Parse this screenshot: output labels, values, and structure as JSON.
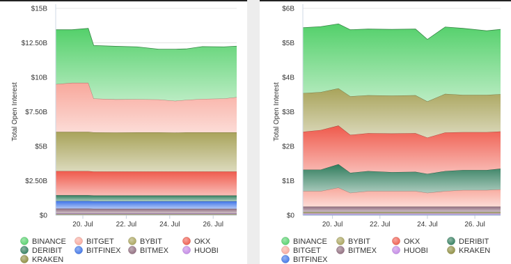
{
  "chart_data": [
    {
      "type": "area",
      "stacked": true,
      "ylabel": "Total Open Interest",
      "y_unit": "USD",
      "ylim": [
        0,
        15000000000
      ],
      "y_ticks": [
        0,
        2500000000,
        5000000000,
        7500000000,
        10000000000,
        12500000000,
        15000000000
      ],
      "y_tick_labels": [
        "$0",
        "$2.50B",
        "$5B",
        "$7.50B",
        "$10B",
        "$12.50B",
        "$15B"
      ],
      "x_range": [
        "2023-07-18T18:00",
        "2023-07-27T02:00"
      ],
      "x_ticks": [
        "2023-07-20",
        "2023-07-22",
        "2023-07-24",
        "2023-07-26"
      ],
      "x_tick_labels": [
        "20. Jul",
        "22. Jul",
        "24. Jul",
        "26. Jul"
      ],
      "legend_position": "bottom",
      "x": [
        "2023-07-18T18:00",
        "2023-07-19T12:00",
        "2023-07-20T06:00",
        "2023-07-20T12:00",
        "2023-07-21T12:00",
        "2023-07-22T12:00",
        "2023-07-23T12:00",
        "2023-07-24T06:00",
        "2023-07-24T18:00",
        "2023-07-25T12:00",
        "2023-07-26T12:00",
        "2023-07-27T02:00"
      ],
      "series": [
        {
          "name": "KRAKEN",
          "color": "#8d8c3e",
          "values": [
            0.08,
            0.08,
            0.08,
            0.08,
            0.08,
            0.08,
            0.08,
            0.08,
            0.08,
            0.08,
            0.08,
            0.08
          ]
        },
        {
          "name": "HUOBI",
          "color": "#c387e6",
          "values": [
            0.05,
            0.05,
            0.05,
            0.05,
            0.05,
            0.05,
            0.05,
            0.05,
            0.05,
            0.05,
            0.05,
            0.05
          ]
        },
        {
          "name": "BITMEX",
          "color": "#8f6b7d",
          "values": [
            0.35,
            0.35,
            0.35,
            0.34,
            0.34,
            0.34,
            0.34,
            0.34,
            0.34,
            0.34,
            0.34,
            0.34
          ]
        },
        {
          "name": "BITFINEX",
          "color": "#3e74e8",
          "values": [
            0.55,
            0.55,
            0.55,
            0.54,
            0.54,
            0.54,
            0.54,
            0.54,
            0.54,
            0.54,
            0.54,
            0.54
          ]
        },
        {
          "name": "DERIBIT",
          "color": "#2f7c5c",
          "values": [
            0.42,
            0.42,
            0.42,
            0.42,
            0.42,
            0.42,
            0.42,
            0.42,
            0.42,
            0.42,
            0.42,
            0.42
          ]
        },
        {
          "name": "OKX",
          "color": "#ef5a4c",
          "values": [
            1.75,
            1.75,
            1.75,
            1.74,
            1.74,
            1.74,
            1.74,
            1.74,
            1.74,
            1.74,
            1.74,
            1.74
          ]
        },
        {
          "name": "BYBIT",
          "color": "#a8a35a",
          "values": [
            2.85,
            2.85,
            2.85,
            2.84,
            2.83,
            2.84,
            2.84,
            2.82,
            2.84,
            2.84,
            2.84,
            2.84
          ]
        },
        {
          "name": "BITGET",
          "color": "#f8a89c",
          "values": [
            3.45,
            3.55,
            3.55,
            2.45,
            2.4,
            2.4,
            2.38,
            2.3,
            2.35,
            2.42,
            2.45,
            2.55
          ]
        },
        {
          "name": "BINANCE",
          "color": "#53d06a",
          "values": [
            3.95,
            3.85,
            3.95,
            3.85,
            3.85,
            3.8,
            3.65,
            3.75,
            3.7,
            3.8,
            3.75,
            3.7
          ]
        }
      ]
    },
    {
      "type": "area",
      "stacked": true,
      "ylabel": "Total Open Interest",
      "y_unit": "USD",
      "ylim": [
        0,
        6000000000
      ],
      "y_ticks": [
        0,
        1000000000,
        2000000000,
        3000000000,
        4000000000,
        5000000000,
        6000000000
      ],
      "y_tick_labels": [
        "$0",
        "$1B",
        "$2B",
        "$3B",
        "$4B",
        "$5B",
        "$6B"
      ],
      "x_range": [
        "2023-07-18T18:00",
        "2023-07-27T02:00"
      ],
      "x_ticks": [
        "2023-07-20",
        "2023-07-22",
        "2023-07-24",
        "2023-07-26"
      ],
      "x_tick_labels": [
        "20. Jul",
        "22. Jul",
        "24. Jul",
        "26. Jul"
      ],
      "legend_position": "bottom",
      "x": [
        "2023-07-18T18:00",
        "2023-07-19T12:00",
        "2023-07-20T06:00",
        "2023-07-20T18:00",
        "2023-07-21T12:00",
        "2023-07-22T12:00",
        "2023-07-23T12:00",
        "2023-07-24T00:00",
        "2023-07-24T18:00",
        "2023-07-25T12:00",
        "2023-07-26T12:00",
        "2023-07-27T02:00"
      ],
      "series": [
        {
          "name": "BITFINEX",
          "color": "#3e74e8",
          "values": [
            0.02,
            0.02,
            0.02,
            0.02,
            0.02,
            0.02,
            0.02,
            0.02,
            0.02,
            0.02,
            0.02,
            0.02
          ]
        },
        {
          "name": "HUOBI",
          "color": "#c387e6",
          "values": [
            0.03,
            0.03,
            0.03,
            0.03,
            0.03,
            0.03,
            0.03,
            0.03,
            0.03,
            0.03,
            0.03,
            0.03
          ]
        },
        {
          "name": "KRAKEN",
          "color": "#8d8c3e",
          "values": [
            0.04,
            0.04,
            0.04,
            0.04,
            0.04,
            0.04,
            0.04,
            0.04,
            0.04,
            0.04,
            0.04,
            0.04
          ]
        },
        {
          "name": "BITMEX",
          "color": "#8f6b7d",
          "values": [
            0.16,
            0.16,
            0.16,
            0.16,
            0.16,
            0.16,
            0.16,
            0.16,
            0.16,
            0.16,
            0.16,
            0.16
          ]
        },
        {
          "name": "BITGET",
          "color": "#f8a89c",
          "values": [
            0.45,
            0.45,
            0.55,
            0.4,
            0.45,
            0.45,
            0.45,
            0.4,
            0.45,
            0.48,
            0.48,
            0.5
          ]
        },
        {
          "name": "DERIBIT",
          "color": "#2f7c5c",
          "values": [
            0.62,
            0.62,
            0.68,
            0.58,
            0.58,
            0.55,
            0.56,
            0.55,
            0.58,
            0.58,
            0.58,
            0.6
          ]
        },
        {
          "name": "OKX",
          "color": "#ef5a4c",
          "values": [
            1.1,
            1.15,
            1.12,
            1.1,
            1.1,
            1.12,
            1.12,
            1.05,
            1.12,
            1.1,
            1.1,
            1.08
          ]
        },
        {
          "name": "BYBIT",
          "color": "#a8a35a",
          "values": [
            1.12,
            1.1,
            1.08,
            1.12,
            1.1,
            1.1,
            1.1,
            1.05,
            1.12,
            1.08,
            1.08,
            1.08
          ]
        },
        {
          "name": "BINANCE",
          "color": "#53d06a",
          "values": [
            1.9,
            1.9,
            1.87,
            1.93,
            1.92,
            1.92,
            1.92,
            1.8,
            1.94,
            1.93,
            1.86,
            1.88
          ]
        }
      ]
    }
  ],
  "legends": [
    {
      "items": [
        {
          "label": "BINANCE",
          "color": "#53d06a"
        },
        {
          "label": "BITGET",
          "color": "#f8a89c"
        },
        {
          "label": "BYBIT",
          "color": "#a8a35a"
        },
        {
          "label": "OKX",
          "color": "#ef5a4c"
        },
        {
          "label": "DERIBIT",
          "color": "#2f7c5c"
        },
        {
          "label": "BITFINEX",
          "color": "#3e74e8"
        },
        {
          "label": "BITMEX",
          "color": "#8f6b7d"
        },
        {
          "label": "HUOBI",
          "color": "#c387e6"
        },
        {
          "label": "KRAKEN",
          "color": "#8d8c3e"
        }
      ]
    },
    {
      "items": [
        {
          "label": "BINANCE",
          "color": "#53d06a"
        },
        {
          "label": "BYBIT",
          "color": "#a8a35a"
        },
        {
          "label": "OKX",
          "color": "#ef5a4c"
        },
        {
          "label": "DERIBIT",
          "color": "#2f7c5c"
        },
        {
          "label": "BITGET",
          "color": "#f8a89c"
        },
        {
          "label": "BITMEX",
          "color": "#8f6b7d"
        },
        {
          "label": "HUOBI",
          "color": "#c387e6"
        },
        {
          "label": "KRAKEN",
          "color": "#8d8c3e"
        },
        {
          "label": "BITFINEX",
          "color": "#3e74e8"
        }
      ]
    }
  ]
}
